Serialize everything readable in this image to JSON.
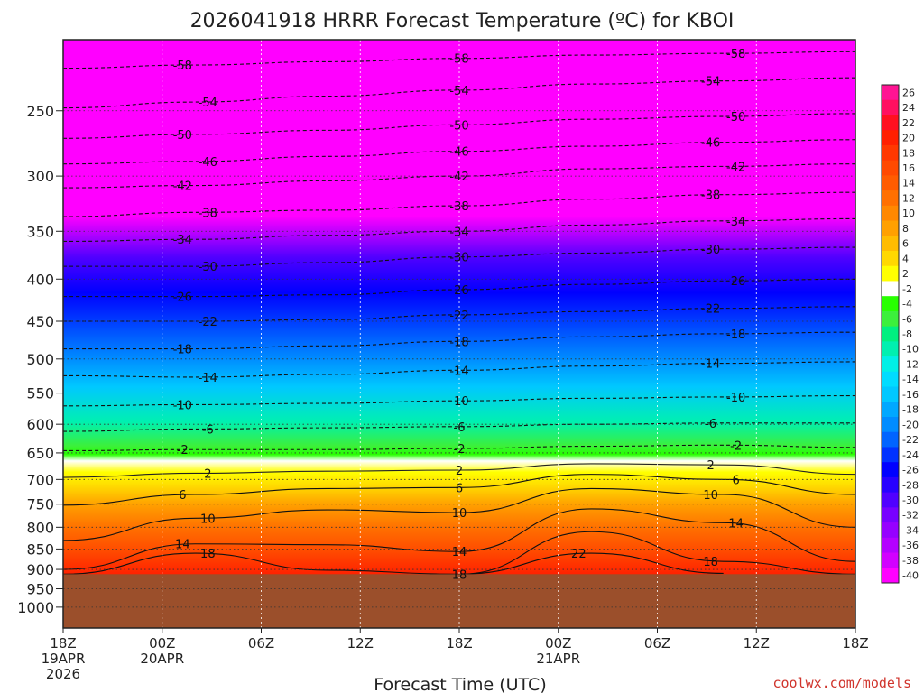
{
  "chart_data": {
    "type": "heatmap",
    "title": "2026041918 HRRR Forecast Temperature (ºC) for KBOI",
    "xlabel": "Forecast Time (UTC)",
    "ylabel": "",
    "y_scale": "log",
    "y_reversed": true,
    "ylim": [
      1060,
      205
    ],
    "yticks": [
      "250",
      "300",
      "350",
      "400",
      "450",
      "500",
      "550",
      "600",
      "650",
      "700",
      "750",
      "800",
      "850",
      "900",
      "950",
      "1000"
    ],
    "x_hours": [
      0,
      6,
      12,
      18,
      24,
      30,
      36,
      42,
      48
    ],
    "xticks": [
      {
        "label": "18Z",
        "line2": "19APR",
        "line3": "2026"
      },
      {
        "label": "00Z",
        "line2": "20APR",
        "line3": ""
      },
      {
        "label": "06Z",
        "line2": "",
        "line3": ""
      },
      {
        "label": "12Z",
        "line2": "",
        "line3": ""
      },
      {
        "label": "18Z",
        "line2": "",
        "line3": ""
      },
      {
        "label": "00Z",
        "line2": "21APR",
        "line3": ""
      },
      {
        "label": "06Z",
        "line2": "",
        "line3": ""
      },
      {
        "label": "12Z",
        "line2": "",
        "line3": ""
      },
      {
        "label": "18Z",
        "line2": "",
        "line3": ""
      }
    ],
    "ground_level_hpa": 912,
    "grid": true,
    "legend_position": "right",
    "colorbar": {
      "labels": [
        "26",
        "24",
        "22",
        "20",
        "18",
        "16",
        "14",
        "12",
        "10",
        "8",
        "6",
        "4",
        "2",
        "-2",
        "-4",
        "-6",
        "-8",
        "-10",
        "-12",
        "-14",
        "-16",
        "-18",
        "-20",
        "-22",
        "-24",
        "-26",
        "-28",
        "-30",
        "-32",
        "-34",
        "-36",
        "-38",
        "-40"
      ],
      "colors": [
        "#ff1493",
        "#ff1060",
        "#ff1020",
        "#ff2000",
        "#ff3800",
        "#ff4a00",
        "#ff5c00",
        "#ff7000",
        "#ff8800",
        "#ffa000",
        "#ffbc00",
        "#ffd800",
        "#ffff00",
        "#ffffff",
        "#28ff00",
        "#3cf03c",
        "#00f080",
        "#00f0b0",
        "#00f0e6",
        "#00dcff",
        "#00c8ff",
        "#00a8ff",
        "#008cff",
        "#0064ff",
        "#0032ff",
        "#0000ff",
        "#2800ff",
        "#5000ff",
        "#7800ff",
        "#9600ff",
        "#b400ff",
        "#d200ff",
        "#ff00ff"
      ]
    },
    "series": [
      {
        "label": "-58",
        "values": [
          [
            0,
            222
          ],
          [
            8,
            220
          ],
          [
            16,
            218
          ],
          [
            24,
            216
          ],
          [
            32,
            214
          ],
          [
            40,
            213
          ],
          [
            48,
            212
          ]
        ]
      },
      {
        "label": "-54",
        "values": [
          [
            0,
            248
          ],
          [
            8,
            244
          ],
          [
            16,
            240
          ],
          [
            24,
            236
          ],
          [
            32,
            232
          ],
          [
            40,
            230
          ],
          [
            48,
            228
          ]
        ]
      },
      {
        "label": "-50",
        "values": [
          [
            0,
            270
          ],
          [
            8,
            267
          ],
          [
            16,
            264
          ],
          [
            24,
            260
          ],
          [
            32,
            256
          ],
          [
            40,
            254
          ],
          [
            48,
            252
          ]
        ]
      },
      {
        "label": "-46",
        "values": [
          [
            0,
            290
          ],
          [
            8,
            288
          ],
          [
            16,
            284
          ],
          [
            24,
            280
          ],
          [
            32,
            276
          ],
          [
            40,
            273
          ],
          [
            48,
            271
          ]
        ]
      },
      {
        "label": "-42",
        "values": [
          [
            0,
            310
          ],
          [
            8,
            308
          ],
          [
            16,
            304
          ],
          [
            24,
            300
          ],
          [
            32,
            294
          ],
          [
            40,
            292
          ],
          [
            48,
            290
          ]
        ]
      },
      {
        "label": "-38",
        "values": [
          [
            0,
            336
          ],
          [
            8,
            332
          ],
          [
            16,
            330
          ],
          [
            24,
            326
          ],
          [
            32,
            320
          ],
          [
            40,
            316
          ],
          [
            48,
            314
          ]
        ]
      },
      {
        "label": "-34",
        "values": [
          [
            0,
            360
          ],
          [
            8,
            358
          ],
          [
            16,
            354
          ],
          [
            24,
            350
          ],
          [
            32,
            344
          ],
          [
            40,
            340
          ],
          [
            48,
            338
          ]
        ]
      },
      {
        "label": "-30",
        "values": [
          [
            0,
            386
          ],
          [
            8,
            386
          ],
          [
            16,
            382
          ],
          [
            24,
            376
          ],
          [
            32,
            372
          ],
          [
            40,
            368
          ],
          [
            48,
            366
          ]
        ]
      },
      {
        "label": "-26",
        "values": [
          [
            0,
            420
          ],
          [
            8,
            420
          ],
          [
            16,
            418
          ],
          [
            24,
            412
          ],
          [
            32,
            406
          ],
          [
            40,
            402
          ],
          [
            48,
            400
          ]
        ]
      },
      {
        "label": "-22",
        "values": [
          [
            0,
            450
          ],
          [
            8,
            450
          ],
          [
            16,
            448
          ],
          [
            24,
            442
          ],
          [
            32,
            438
          ],
          [
            40,
            434
          ],
          [
            48,
            432
          ]
        ]
      },
      {
        "label": "-18",
        "values": [
          [
            0,
            486
          ],
          [
            8,
            486
          ],
          [
            16,
            482
          ],
          [
            24,
            476
          ],
          [
            32,
            470
          ],
          [
            40,
            466
          ],
          [
            48,
            464
          ]
        ]
      },
      {
        "label": "-14",
        "values": [
          [
            0,
            524
          ],
          [
            8,
            526
          ],
          [
            16,
            522
          ],
          [
            24,
            516
          ],
          [
            32,
            510
          ],
          [
            40,
            506
          ],
          [
            48,
            504
          ]
        ]
      },
      {
        "label": "-10",
        "values": [
          [
            0,
            570
          ],
          [
            8,
            568
          ],
          [
            16,
            566
          ],
          [
            24,
            562
          ],
          [
            32,
            558
          ],
          [
            40,
            556
          ],
          [
            48,
            554
          ]
        ]
      },
      {
        "label": "-6",
        "values": [
          [
            0,
            612
          ],
          [
            8,
            608
          ],
          [
            16,
            606
          ],
          [
            24,
            604
          ],
          [
            32,
            600
          ],
          [
            40,
            598
          ],
          [
            48,
            598
          ]
        ]
      },
      {
        "label": "-2",
        "values": [
          [
            0,
            646
          ],
          [
            8,
            644
          ],
          [
            16,
            644
          ],
          [
            24,
            642
          ],
          [
            32,
            638
          ],
          [
            40,
            636
          ],
          [
            48,
            640
          ]
        ]
      },
      {
        "label": "2",
        "values": [
          [
            0,
            696
          ],
          [
            8,
            688
          ],
          [
            16,
            684
          ],
          [
            24,
            682
          ],
          [
            32,
            670
          ],
          [
            40,
            672
          ],
          [
            48,
            690
          ]
        ]
      },
      {
        "label": "6",
        "values": [
          [
            0,
            752
          ],
          [
            8,
            730
          ],
          [
            16,
            718
          ],
          [
            24,
            716
          ],
          [
            32,
            690
          ],
          [
            40,
            700
          ],
          [
            48,
            730
          ]
        ]
      },
      {
        "label": "10",
        "values": [
          [
            0,
            830
          ],
          [
            8,
            780
          ],
          [
            16,
            762
          ],
          [
            24,
            768
          ],
          [
            32,
            718
          ],
          [
            40,
            730
          ],
          [
            48,
            800
          ]
        ]
      },
      {
        "label": "14",
        "values": [
          [
            0,
            900
          ],
          [
            8,
            838
          ],
          [
            16,
            840
          ],
          [
            24,
            856
          ],
          [
            32,
            760
          ],
          [
            40,
            790
          ],
          [
            48,
            880
          ]
        ]
      },
      {
        "label": "18",
        "values": [
          [
            0,
            912
          ],
          [
            8,
            860
          ],
          [
            16,
            902
          ],
          [
            24,
            912
          ],
          [
            32,
            810
          ],
          [
            40,
            880
          ],
          [
            48,
            912
          ]
        ]
      },
      {
        "label": "22",
        "values": [
          [
            24,
            912
          ],
          [
            32,
            860
          ],
          [
            40,
            910
          ]
        ]
      }
    ]
  },
  "credit": "coolwx.com/models"
}
